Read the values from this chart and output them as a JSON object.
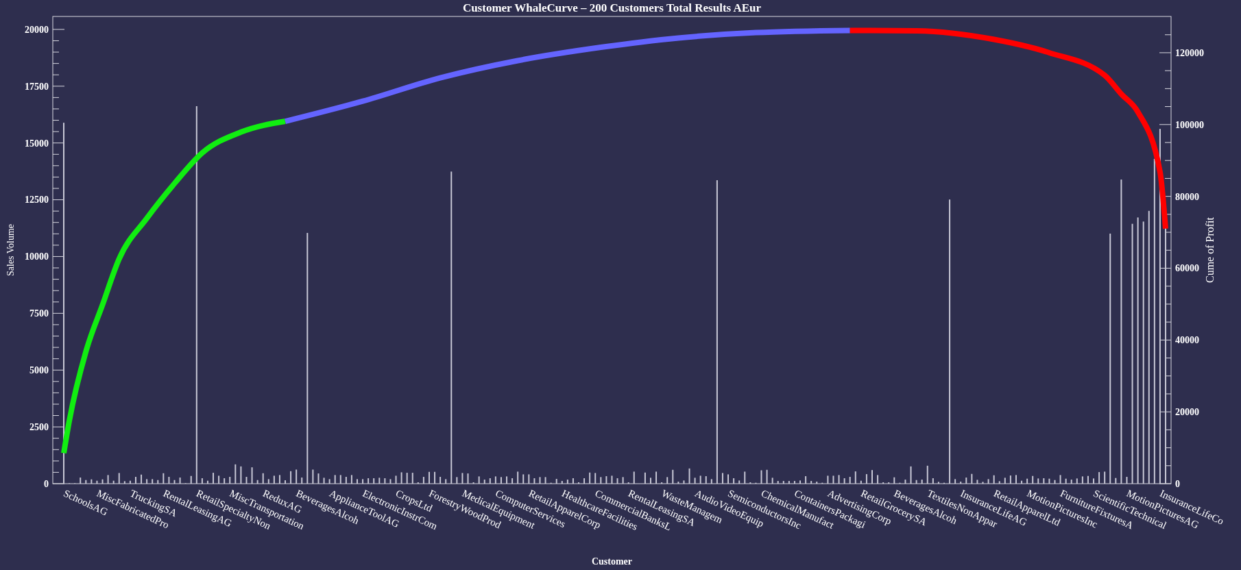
{
  "chart_data": {
    "type": "bar",
    "title": "Customer WhaleCurve – 200 Customers Total Results AEur",
    "xlabel": "Customer",
    "ylabel": "Sales Volume",
    "y2label": "Cume of Profit",
    "categories": [
      "SchoolsAG",
      null,
      null,
      null,
      null,
      null,
      "MiscFabricatedPro",
      null,
      null,
      null,
      null,
      null,
      "TruckingSA",
      null,
      null,
      null,
      null,
      null,
      "RentalLeasingAG",
      null,
      null,
      null,
      null,
      null,
      "RetailSpecialtyNon",
      null,
      null,
      null,
      null,
      null,
      "MiscTransportation",
      null,
      null,
      null,
      null,
      null,
      "ReduxAG",
      null,
      null,
      null,
      null,
      null,
      "BeveragesAlcoh",
      null,
      null,
      null,
      null,
      null,
      "ApplianceToolAG",
      null,
      null,
      null,
      null,
      null,
      "ElectronicInstrCom",
      null,
      null,
      null,
      null,
      null,
      "CropsLtd",
      null,
      null,
      null,
      null,
      null,
      "ForestryWoodProd",
      null,
      null,
      null,
      null,
      null,
      "MedicalEquipment",
      null,
      null,
      null,
      null,
      null,
      "ComputerServices",
      null,
      null,
      null,
      null,
      null,
      "RetailApparelCorp",
      null,
      null,
      null,
      null,
      null,
      "HealthcareFacilities",
      null,
      null,
      null,
      null,
      null,
      "CommercialBanksL",
      null,
      null,
      null,
      null,
      null,
      "RentalLeasingSA",
      null,
      null,
      null,
      null,
      null,
      "WasteManagem",
      null,
      null,
      null,
      null,
      null,
      "AudioVideoEquip",
      null,
      null,
      null,
      null,
      null,
      "SemiconductorsInc",
      null,
      null,
      null,
      null,
      null,
      "ChemicalManufact",
      null,
      null,
      null,
      null,
      null,
      "ContainersPackagi",
      null,
      null,
      null,
      null,
      null,
      "AdvertisingCorp",
      null,
      null,
      null,
      null,
      null,
      "RetailGrocerySA",
      null,
      null,
      null,
      null,
      null,
      "BeveragesAlcoh",
      null,
      null,
      null,
      null,
      null,
      "TextilesNonAppar",
      null,
      null,
      null,
      null,
      null,
      "InsuranceLifeAG",
      null,
      null,
      null,
      null,
      null,
      "RetailApparelLtd",
      null,
      null,
      null,
      null,
      null,
      "MotionPicturesInc",
      null,
      null,
      null,
      null,
      null,
      "FurnitureFixturesA",
      null,
      null,
      null,
      null,
      null,
      "ScientificTechnical",
      null,
      null,
      null,
      null,
      null,
      "MotionPicturesAG",
      null,
      null,
      null,
      null,
      null,
      "InsuranceLifeCo",
      null
    ],
    "series": [
      {
        "color": "#c8c8d6",
        "values": [
          15890,
          20,
          20,
          270,
          160,
          190,
          130,
          190,
          380,
          130,
          470,
          110,
          130,
          300,
          400,
          200,
          200,
          160,
          460,
          300,
          160,
          270,
          20,
          340,
          16620,
          240,
          130,
          480,
          350,
          240,
          300,
          850,
          760,
          300,
          720,
          160,
          460,
          200,
          350,
          380,
          150,
          550,
          620,
          270,
          11040,
          620,
          450,
          260,
          200,
          380,
          380,
          300,
          380,
          200,
          200,
          240,
          240,
          260,
          240,
          200,
          350,
          500,
          480,
          480,
          60,
          300,
          520,
          520,
          300,
          200,
          13740,
          290,
          470,
          450,
          60,
          320,
          180,
          240,
          320,
          290,
          320,
          240,
          530,
          410,
          410,
          240,
          290,
          290,
          40,
          210,
          120,
          180,
          240,
          60,
          240,
          490,
          470,
          290,
          330,
          350,
          240,
          290,
          60,
          530,
          0,
          490,
          260,
          530,
          60,
          290,
          610,
          90,
          140,
          670,
          260,
          350,
          330,
          200,
          13360,
          470,
          410,
          240,
          140,
          530,
          60,
          40,
          590,
          610,
          260,
          120,
          120,
          120,
          120,
          140,
          330,
          120,
          90,
          40,
          350,
          350,
          380,
          240,
          300,
          540,
          130,
          420,
          600,
          380,
          60,
          60,
          280,
          40,
          180,
          760,
          160,
          180,
          790,
          240,
          80,
          40,
          12510,
          200,
          90,
          270,
          430,
          170,
          80,
          200,
          370,
          110,
          260,
          360,
          380,
          130,
          220,
          340,
          230,
          240,
          220,
          160,
          380,
          220,
          180,
          230,
          320,
          340,
          230,
          510,
          530,
          11010,
          250,
          13390,
          300,
          11440,
          11720,
          11540,
          12010,
          14300,
          15620,
          11300
        ]
      },
      {
        "type": "line",
        "axis": "y2",
        "color": "#11ee11",
        "values": [
          8500,
          17500,
          null,
          null,
          36800,
          null,
          null,
          49800,
          null,
          null,
          62600,
          null,
          null,
          null,
          null,
          73900,
          null,
          null,
          null,
          null,
          83600,
          null,
          null,
          null,
          null,
          92100,
          null,
          null,
          null,
          null,
          null,
          null,
          97900,
          null,
          null,
          null,
          null,
          null,
          null,
          null,
          100900,
          null,
          null,
          null,
          null,
          null,
          null,
          null,
          null,
          null,
          null,
          null,
          null,
          null,
          null,
          null,
          null,
          null,
          null,
          null,
          null,
          null,
          null,
          null,
          null,
          null,
          null,
          null,
          null,
          null,
          null,
          null,
          null,
          null,
          null,
          null,
          null,
          null,
          null,
          null,
          null,
          null,
          null,
          null,
          null,
          null,
          null,
          null,
          null,
          null,
          null,
          null,
          null,
          null,
          null,
          null,
          null,
          null,
          null,
          null,
          null,
          null,
          null,
          null,
          null,
          null,
          null,
          null,
          null,
          null,
          null,
          null,
          null,
          null,
          null,
          null,
          null,
          null,
          null,
          null,
          null,
          null,
          null,
          null,
          null,
          null,
          null,
          null,
          null,
          null,
          null,
          null,
          null,
          null,
          null,
          null,
          null,
          null,
          null,
          null,
          null,
          null,
          null,
          null,
          null,
          null,
          null,
          null,
          null,
          null,
          null,
          null,
          null,
          null,
          null,
          null,
          null,
          null,
          null,
          null,
          null,
          null,
          null,
          null,
          null,
          null,
          null,
          null,
          null,
          null,
          null,
          null,
          null,
          null,
          null,
          null,
          null,
          null,
          null,
          null,
          null,
          null,
          null,
          null,
          null,
          null,
          null,
          null,
          null,
          null,
          null,
          null,
          null,
          null,
          null,
          null,
          null,
          null,
          null,
          null
        ]
      },
      {
        "type": "line",
        "axis": "y2",
        "color": "#6464ff",
        "values": [
          null,
          null,
          null,
          null,
          null,
          null,
          null,
          null,
          null,
          null,
          null,
          null,
          null,
          null,
          null,
          null,
          null,
          null,
          null,
          null,
          null,
          null,
          null,
          null,
          null,
          null,
          null,
          null,
          null,
          null,
          null,
          null,
          null,
          null,
          null,
          null,
          null,
          null,
          null,
          null,
          100900,
          null,
          null,
          null,
          null,
          null,
          null,
          null,
          null,
          null,
          null,
          null,
          null,
          null,
          106500,
          null,
          null,
          null,
          null,
          null,
          null,
          null,
          null,
          null,
          null,
          null,
          null,
          null,
          113000,
          null,
          null,
          null,
          null,
          null,
          null,
          null,
          null,
          null,
          null,
          null,
          null,
          null,
          117800,
          null,
          null,
          null,
          null,
          null,
          null,
          null,
          null,
          null,
          null,
          null,
          null,
          null,
          null,
          121500,
          null,
          null,
          null,
          null,
          null,
          null,
          null,
          null,
          null,
          null,
          null,
          null,
          null,
          124100,
          null,
          null,
          null,
          null,
          null,
          null,
          null,
          null,
          null,
          null,
          null,
          null,
          null,
          125600,
          null,
          null,
          null,
          null,
          null,
          null,
          null,
          null,
          null,
          null,
          null,
          null,
          null,
          null,
          null,
          null,
          126200,
          null,
          null,
          null,
          null,
          null,
          null,
          null,
          null,
          null,
          null,
          null,
          null,
          null,
          null,
          null,
          null,
          null,
          null,
          null,
          null,
          null,
          null,
          null,
          null,
          null,
          null,
          null,
          null,
          null,
          null,
          null,
          null,
          null,
          null,
          null,
          null,
          null,
          null,
          null,
          null,
          null,
          null,
          null,
          null,
          null,
          null,
          null,
          null,
          null,
          null,
          null,
          null,
          null,
          null,
          null,
          null,
          null
        ]
      },
      {
        "type": "line",
        "axis": "y2",
        "color": "#ff0000",
        "values": [
          null,
          null,
          null,
          null,
          null,
          null,
          null,
          null,
          null,
          null,
          null,
          null,
          null,
          null,
          null,
          null,
          null,
          null,
          null,
          null,
          null,
          null,
          null,
          null,
          null,
          null,
          null,
          null,
          null,
          null,
          null,
          null,
          null,
          null,
          null,
          null,
          null,
          null,
          null,
          null,
          null,
          null,
          null,
          null,
          null,
          null,
          null,
          null,
          null,
          null,
          null,
          null,
          null,
          null,
          null,
          null,
          null,
          null,
          null,
          null,
          null,
          null,
          null,
          null,
          null,
          null,
          null,
          null,
          null,
          null,
          null,
          null,
          null,
          null,
          null,
          null,
          null,
          null,
          null,
          null,
          null,
          null,
          null,
          null,
          null,
          null,
          null,
          null,
          null,
          null,
          null,
          null,
          null,
          null,
          null,
          null,
          null,
          null,
          null,
          null,
          null,
          null,
          null,
          null,
          null,
          null,
          null,
          null,
          null,
          null,
          null,
          null,
          null,
          null,
          null,
          null,
          null,
          null,
          null,
          null,
          null,
          null,
          null,
          null,
          null,
          null,
          null,
          null,
          null,
          null,
          null,
          null,
          null,
          null,
          null,
          null,
          null,
          null,
          null,
          null,
          null,
          null,
          126200,
          null,
          null,
          null,
          null,
          null,
          null,
          null,
          null,
          null,
          null,
          null,
          126100,
          null,
          null,
          null,
          null,
          null,
          null,
          null,
          null,
          null,
          null,
          null,
          null,
          null,
          123700,
          null,
          null,
          null,
          null,
          null,
          null,
          null,
          null,
          null,
          120000,
          null,
          null,
          null,
          null,
          null,
          null,
          null,
          null,
          null,
          113700,
          null,
          null,
          108500,
          null,
          null,
          103500,
          null,
          null,
          null,
          86800,
          71000
        ]
      }
    ],
    "ylim": [
      0,
      20570
    ],
    "yticks": [
      0,
      {
        "value": 500,
        "label": null
      },
      {
        "value": 1000,
        "label": null
      },
      {
        "value": 1500,
        "label": null
      },
      {
        "value": 2000,
        "label": null
      },
      2500,
      {
        "value": 3000,
        "label": null
      },
      {
        "value": 3500,
        "label": null
      },
      {
        "value": 4000,
        "label": null
      },
      {
        "value": 4500,
        "label": null
      },
      5000,
      {
        "value": 5500,
        "label": null
      },
      {
        "value": 6000,
        "label": null
      },
      {
        "value": 6500,
        "label": null
      },
      {
        "value": 7000,
        "label": null
      },
      7500,
      {
        "value": 8000,
        "label": null
      },
      {
        "value": 8500,
        "label": null
      },
      {
        "value": 9000,
        "label": null
      },
      {
        "value": 9500,
        "label": null
      },
      10000,
      {
        "value": 10500,
        "label": null
      },
      {
        "value": 11000,
        "label": null
      },
      {
        "value": 11500,
        "label": null
      },
      {
        "value": 12000,
        "label": null
      },
      12500,
      {
        "value": 13000,
        "label": null
      },
      {
        "value": 13500,
        "label": null
      },
      {
        "value": 14000,
        "label": null
      },
      {
        "value": 14500,
        "label": null
      },
      15000,
      {
        "value": 15500,
        "label": null
      },
      {
        "value": 16000,
        "label": null
      },
      {
        "value": 16500,
        "label": null
      },
      {
        "value": 17000,
        "label": null
      },
      17500,
      {
        "value": 18000,
        "label": null
      },
      {
        "value": 18500,
        "label": null
      },
      {
        "value": 19000,
        "label": null
      },
      {
        "value": 19500,
        "label": null
      },
      20000
    ],
    "y2lim": [
      0,
      130100
    ],
    "y2ticks": [
      0,
      {
        "value": 5000,
        "label": null
      },
      {
        "value": 10000,
        "label": null
      },
      {
        "value": 15000,
        "label": null
      },
      20000,
      {
        "value": 25000,
        "label": null
      },
      {
        "value": 30000,
        "label": null
      },
      {
        "value": 35000,
        "label": null
      },
      40000,
      {
        "value": 45000,
        "label": null
      },
      {
        "value": 50000,
        "label": null
      },
      {
        "value": 55000,
        "label": null
      },
      60000,
      {
        "value": 65000,
        "label": null
      },
      {
        "value": 70000,
        "label": null
      },
      {
        "value": 75000,
        "label": null
      },
      80000,
      {
        "value": 85000,
        "label": null
      },
      {
        "value": 90000,
        "label": null
      },
      {
        "value": 95000,
        "label": null
      },
      100000,
      {
        "value": 105000,
        "label": null
      },
      {
        "value": 110000,
        "label": null
      },
      {
        "value": 115000,
        "label": null
      },
      120000,
      {
        "value": 125000,
        "label": null
      }
    ]
  }
}
